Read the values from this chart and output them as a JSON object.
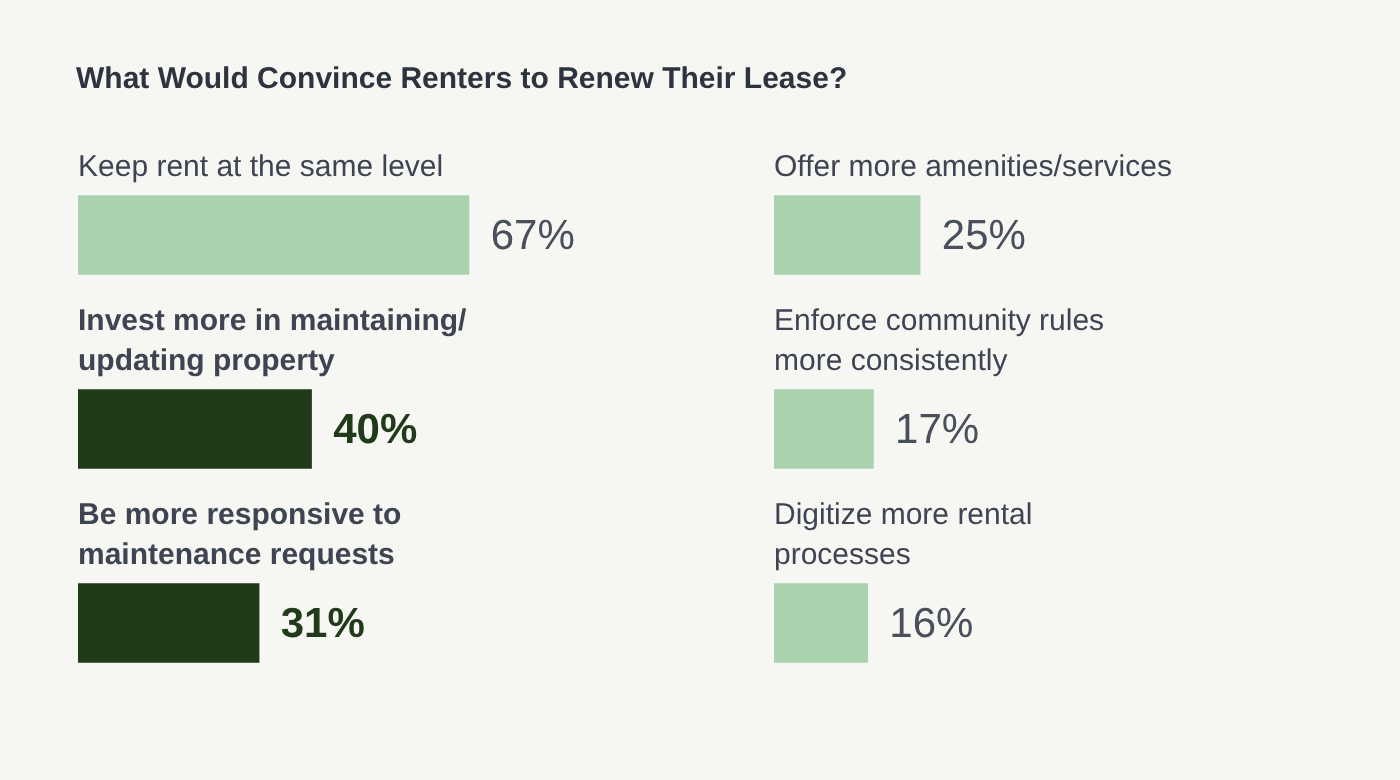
{
  "chart_data": [
    {
      "type": "bar",
      "title": "What Would Convince Renters to Renew Their Lease?",
      "orientation": "horizontal",
      "categories": [
        "Keep rent at the same level",
        "Invest more in maintaining/\nupdating property",
        "Be more responsive to\nmaintenance requests"
      ],
      "values": [
        67,
        40,
        31
      ],
      "colors": [
        "#a8d3ae",
        "#213a1a",
        "#213a1a"
      ],
      "value_labels": [
        "67%",
        "40%",
        "31%"
      ],
      "tick_labels": false
    },
    {
      "type": "bar",
      "orientation": "horizontal",
      "categories": [
        "Offer more amenities/services",
        "Enforce community rules\nmore consistently",
        "Digitize more rental\nprocesses"
      ],
      "values": [
        25,
        17,
        16
      ],
      "colors": [
        "#a8d3ae",
        "#a8d3ae",
        "#a8d3ae"
      ],
      "value_labels": [
        "25%",
        "17%",
        "16%"
      ],
      "tick_labels": false
    }
  ]
}
